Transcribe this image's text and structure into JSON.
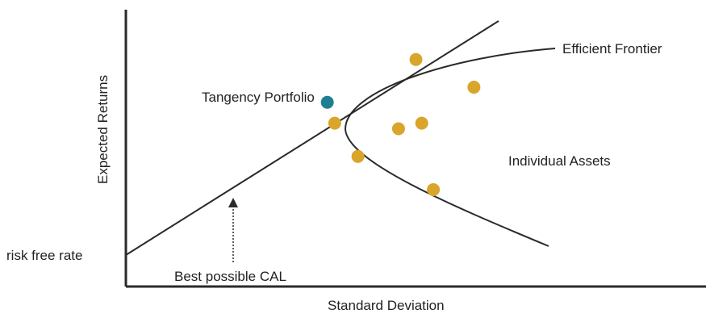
{
  "title": "",
  "axes": {
    "xlabel": "Standard Deviation",
    "ylabel": "Expected Returns",
    "y_tick_label": "risk free rate"
  },
  "annotations": {
    "tangency": "Tangency Portfolio",
    "frontier": "Efficient Frontier",
    "assets": "Individual Assets",
    "cal": "Best possible CAL"
  },
  "colors": {
    "asset_dot": "#D9A52A",
    "tangency_dot": "#1F7F92",
    "line": "#2a2a2a"
  },
  "chart_data": {
    "type": "scatter",
    "note": "Conceptual diagram with unlabeled axes; values in relative units (0-10 scale).",
    "series": [
      {
        "name": "Individual Assets",
        "points": [
          {
            "x": 3.6,
            "y": 5.9
          },
          {
            "x": 4.0,
            "y": 4.7
          },
          {
            "x": 4.7,
            "y": 5.7
          },
          {
            "x": 5.1,
            "y": 5.9
          },
          {
            "x": 5.3,
            "y": 3.5
          },
          {
            "x": 5.0,
            "y": 8.2
          },
          {
            "x": 6.0,
            "y": 7.2
          }
        ]
      },
      {
        "name": "Tangency Portfolio",
        "points": [
          {
            "x": 3.5,
            "y": 6.8
          }
        ]
      }
    ],
    "xlim": [
      0,
      10
    ],
    "ylim": [
      0,
      10
    ]
  }
}
